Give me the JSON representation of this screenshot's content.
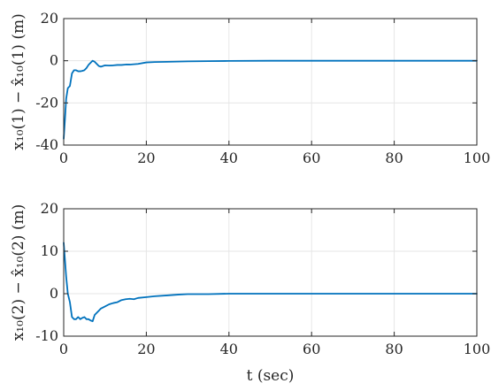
{
  "chart_data": [
    {
      "type": "line",
      "title": "",
      "xlabel": "",
      "ylabel": "x₁₀(1) − x̂₁₀(1) (m)",
      "xlim": [
        0,
        100
      ],
      "ylim": [
        -40,
        20
      ],
      "xticks": [
        "0",
        "20",
        "40",
        "60",
        "80",
        "100"
      ],
      "yticks": [
        "20",
        "0",
        "-20",
        "-40"
      ],
      "xtick_values": [
        0,
        20,
        40,
        60,
        80,
        100
      ],
      "ytick_values": [
        20,
        0,
        -20,
        -40
      ],
      "grid": true,
      "series": [
        {
          "color": "#0072bd",
          "x": [
            0,
            0.3,
            0.6,
            1.0,
            1.5,
            2.0,
            2.5,
            3.0,
            3.5,
            4.0,
            4.5,
            5.0,
            5.5,
            6.0,
            6.5,
            7.0,
            7.5,
            8.0,
            8.5,
            9.0,
            9.5,
            10,
            11,
            12,
            13,
            14,
            15,
            16,
            18,
            20,
            22,
            25,
            30,
            35,
            40,
            50,
            60,
            70,
            80,
            90,
            100
          ],
          "y": [
            -37,
            -28,
            -18,
            -13,
            -12,
            -6,
            -4.5,
            -4.5,
            -5,
            -5,
            -4.8,
            -4.5,
            -3.5,
            -2,
            -1,
            0,
            -0.5,
            -1.5,
            -2.5,
            -2.8,
            -2.5,
            -2.2,
            -2.3,
            -2.2,
            -2.0,
            -2.0,
            -1.8,
            -1.8,
            -1.5,
            -0.8,
            -0.6,
            -0.5,
            -0.3,
            -0.2,
            -0.1,
            0,
            0,
            0,
            0,
            0,
            0
          ]
        }
      ]
    },
    {
      "type": "line",
      "title": "",
      "xlabel": "t (sec)",
      "ylabel": "x₁₀(2) − x̂₁₀(2) (m)",
      "xlim": [
        0,
        100
      ],
      "ylim": [
        -10,
        20
      ],
      "xticks": [
        "0",
        "20",
        "40",
        "60",
        "80",
        "100"
      ],
      "yticks": [
        "20",
        "10",
        "0",
        "-10"
      ],
      "xtick_values": [
        0,
        20,
        40,
        60,
        80,
        100
      ],
      "ytick_values": [
        20,
        10,
        0,
        -10
      ],
      "grid": true,
      "series": [
        {
          "color": "#0072bd",
          "x": [
            0,
            0.3,
            0.6,
            1.0,
            1.5,
            2.0,
            2.5,
            3.0,
            3.5,
            4.0,
            4.5,
            5.0,
            5.5,
            6.0,
            6.5,
            7.0,
            7.5,
            8.0,
            8.5,
            9.0,
            10,
            11,
            12,
            13,
            14,
            15,
            16,
            17,
            18,
            20,
            22,
            25,
            28,
            30,
            35,
            40,
            50,
            60,
            70,
            80,
            90,
            100
          ],
          "y": [
            12,
            8,
            4,
            0,
            -2,
            -5.5,
            -6,
            -6,
            -5.5,
            -6,
            -5.7,
            -5.5,
            -6,
            -6,
            -6.3,
            -6.5,
            -5,
            -4.5,
            -4,
            -3.5,
            -3,
            -2.5,
            -2.2,
            -2,
            -1.5,
            -1.3,
            -1.2,
            -1.3,
            -1.0,
            -0.8,
            -0.6,
            -0.4,
            -0.2,
            -0.1,
            -0.1,
            0,
            0,
            0,
            0,
            0,
            0,
            0
          ]
        }
      ]
    }
  ]
}
